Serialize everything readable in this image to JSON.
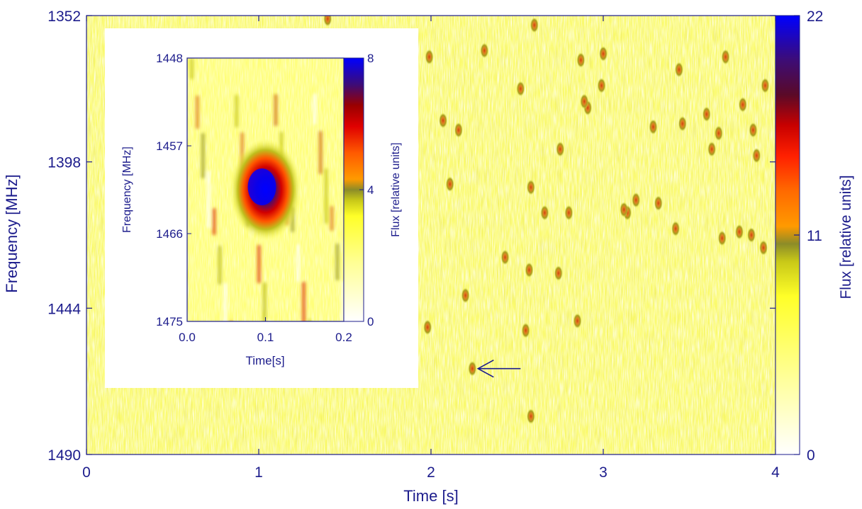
{
  "chart_data": [
    {
      "id": "main",
      "type": "heatmap",
      "xlabel": "Time [s]",
      "ylabel": "Frequency [MHz]",
      "xlim": [
        0,
        4
      ],
      "ylim": [
        1352,
        1490
      ],
      "y_reversed": true,
      "x_ticks": [
        "0",
        "1",
        "2",
        "3",
        "4"
      ],
      "x_tick_values": [
        0,
        1,
        2,
        3,
        4
      ],
      "y_ticks": [
        "1352",
        "1398",
        "1444",
        "1490"
      ],
      "y_tick_values": [
        1352,
        1398,
        1444,
        1490
      ],
      "colorbar": {
        "label": "Flux [relative units]",
        "range": [
          0,
          22
        ],
        "ticks": [
          "0",
          "11",
          "22"
        ],
        "tick_values": [
          0,
          11,
          22
        ]
      },
      "annotation": {
        "type": "arrow",
        "points_to_time": 2.24,
        "points_to_freq": 1463
      },
      "bright_spots": [
        {
          "t": 1.4,
          "f": 1353
        },
        {
          "t": 1.99,
          "f": 1365
        },
        {
          "t": 2.07,
          "f": 1385
        },
        {
          "t": 2.16,
          "f": 1388
        },
        {
          "t": 2.11,
          "f": 1405
        },
        {
          "t": 2.31,
          "f": 1363
        },
        {
          "t": 2.52,
          "f": 1375
        },
        {
          "t": 2.58,
          "f": 1406
        },
        {
          "t": 2.75,
          "f": 1394
        },
        {
          "t": 2.66,
          "f": 1414
        },
        {
          "t": 2.8,
          "f": 1414
        },
        {
          "t": 2.87,
          "f": 1366
        },
        {
          "t": 2.99,
          "f": 1374
        },
        {
          "t": 2.91,
          "f": 1381
        },
        {
          "t": 2.89,
          "f": 1379
        },
        {
          "t": 3.14,
          "f": 1414
        },
        {
          "t": 3.29,
          "f": 1387
        },
        {
          "t": 3.12,
          "f": 1413
        },
        {
          "t": 3.19,
          "f": 1410
        },
        {
          "t": 3.32,
          "f": 1411
        },
        {
          "t": 3.44,
          "f": 1369
        },
        {
          "t": 3.46,
          "f": 1386
        },
        {
          "t": 3.63,
          "f": 1394
        },
        {
          "t": 3.6,
          "f": 1383
        },
        {
          "t": 3.71,
          "f": 1365
        },
        {
          "t": 3.67,
          "f": 1389
        },
        {
          "t": 3.81,
          "f": 1380
        },
        {
          "t": 3.87,
          "f": 1388
        },
        {
          "t": 3.89,
          "f": 1396
        },
        {
          "t": 3.94,
          "f": 1374
        },
        {
          "t": 3.79,
          "f": 1420
        },
        {
          "t": 3.86,
          "f": 1421
        },
        {
          "t": 3.93,
          "f": 1425
        },
        {
          "t": 3.69,
          "f": 1422
        },
        {
          "t": 3.42,
          "f": 1419
        },
        {
          "t": 2.57,
          "f": 1432
        },
        {
          "t": 2.74,
          "f": 1433
        },
        {
          "t": 2.43,
          "f": 1428
        },
        {
          "t": 2.85,
          "f": 1448
        },
        {
          "t": 2.55,
          "f": 1451
        },
        {
          "t": 2.2,
          "f": 1440
        },
        {
          "t": 2.24,
          "f": 1463
        },
        {
          "t": 2.58,
          "f": 1478
        },
        {
          "t": 1.98,
          "f": 1450
        },
        {
          "t": 2.6,
          "f": 1355
        },
        {
          "t": 3.0,
          "f": 1364
        }
      ]
    },
    {
      "id": "inset",
      "type": "heatmap",
      "xlabel": "Time[s]",
      "ylabel": "Frequency [MHz]",
      "xlim": [
        0,
        0.2
      ],
      "ylim": [
        1448,
        1475
      ],
      "y_reversed": true,
      "x_ticks": [
        "0.0",
        "0.1",
        "0.2"
      ],
      "x_tick_values": [
        0,
        0.1,
        0.2
      ],
      "y_ticks": [
        "1448",
        "1457",
        "1466",
        "1475"
      ],
      "y_tick_values": [
        1448,
        1457,
        1466,
        1475
      ],
      "colorbar": {
        "label": "Flux [relative units]",
        "range": [
          0,
          8
        ],
        "ticks": [
          "0",
          "4",
          "8"
        ],
        "tick_values": [
          0,
          4,
          8
        ]
      },
      "pulse": {
        "t_center": 0.1,
        "f_center": 1461.5,
        "peak_flux": 8
      }
    }
  ],
  "colors": {
    "axis": "#1c1c8c",
    "background_field": "#fbfb6e",
    "colormap": [
      "#ffffff",
      "#ffff5a",
      "#bfbf1e",
      "#e09020",
      "#ff5500",
      "#d20000",
      "#3c0c78",
      "#0000ff"
    ]
  }
}
